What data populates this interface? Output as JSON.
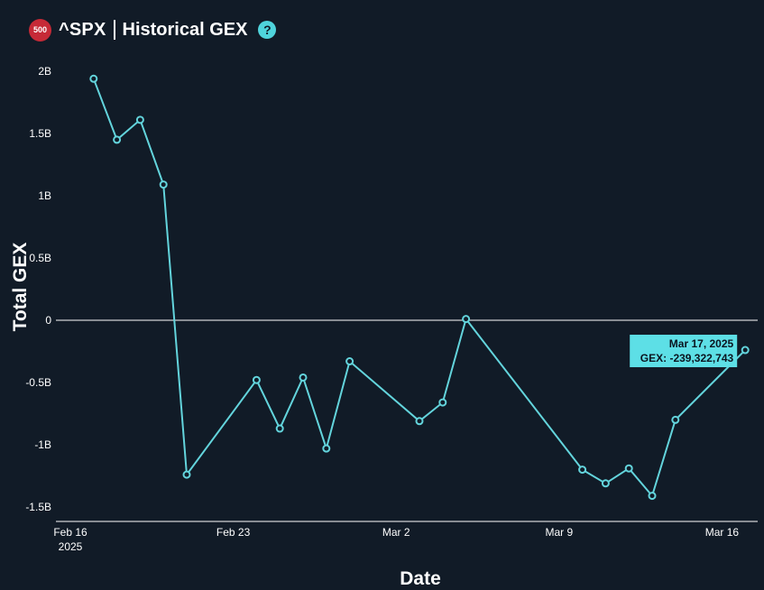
{
  "header": {
    "badge": "500",
    "ticker": "^SPX",
    "title": "Historical GEX",
    "help": "?"
  },
  "colors": {
    "background": "#111b27",
    "line": "#63d4dc",
    "badge": "#c62a37",
    "tooltip": "#5ddfe6"
  },
  "chart_data": {
    "type": "line",
    "xlabel": "Date",
    "ylabel": "Total GEX",
    "ylim": [
      -1500000000,
      2000000000
    ],
    "xlim": [
      "2025-02-16",
      "2025-03-17"
    ],
    "yticks": [
      {
        "value": 2000000000,
        "label": "2B"
      },
      {
        "value": 1500000000,
        "label": "1.5B"
      },
      {
        "value": 1000000000,
        "label": "1B"
      },
      {
        "value": 500000000,
        "label": "0.5B"
      },
      {
        "value": 0,
        "label": "0"
      },
      {
        "value": -500000000,
        "label": "-0.5B"
      },
      {
        "value": -1000000000,
        "label": "-1B"
      },
      {
        "value": -1500000000,
        "label": "-1.5B"
      }
    ],
    "xticks": [
      {
        "date": "2025-02-16",
        "label": "Feb 16",
        "sublabel": "2025"
      },
      {
        "date": "2025-02-23",
        "label": "Feb 23",
        "sublabel": ""
      },
      {
        "date": "2025-03-02",
        "label": "Mar 2",
        "sublabel": ""
      },
      {
        "date": "2025-03-09",
        "label": "Mar 9",
        "sublabel": ""
      },
      {
        "date": "2025-03-16",
        "label": "Mar 16",
        "sublabel": ""
      }
    ],
    "series": [
      {
        "points": [
          {
            "date": "2025-02-17",
            "y": 1940000000
          },
          {
            "date": "2025-02-18",
            "y": 1450000000
          },
          {
            "date": "2025-02-19",
            "y": 1610000000
          },
          {
            "date": "2025-02-20",
            "y": 1090000000
          },
          {
            "date": "2025-02-21",
            "y": -1240000000
          },
          {
            "date": "2025-02-24",
            "y": -480000000
          },
          {
            "date": "2025-02-25",
            "y": -870000000
          },
          {
            "date": "2025-02-26",
            "y": -460000000
          },
          {
            "date": "2025-02-27",
            "y": -1030000000
          },
          {
            "date": "2025-02-28",
            "y": -330000000
          },
          {
            "date": "2025-03-03",
            "y": -810000000
          },
          {
            "date": "2025-03-04",
            "y": -660000000
          },
          {
            "date": "2025-03-05",
            "y": 10000000
          },
          {
            "date": "2025-03-10",
            "y": -1200000000
          },
          {
            "date": "2025-03-11",
            "y": -1310000000
          },
          {
            "date": "2025-03-12",
            "y": -1190000000
          },
          {
            "date": "2025-03-13",
            "y": -1410000000
          },
          {
            "date": "2025-03-14",
            "y": -800000000
          },
          {
            "date": "2025-03-17",
            "y": -239322743
          }
        ]
      }
    ],
    "tooltip": {
      "date_label": "Mar 17, 2025",
      "value_label": "GEX: -239,322,743"
    }
  }
}
